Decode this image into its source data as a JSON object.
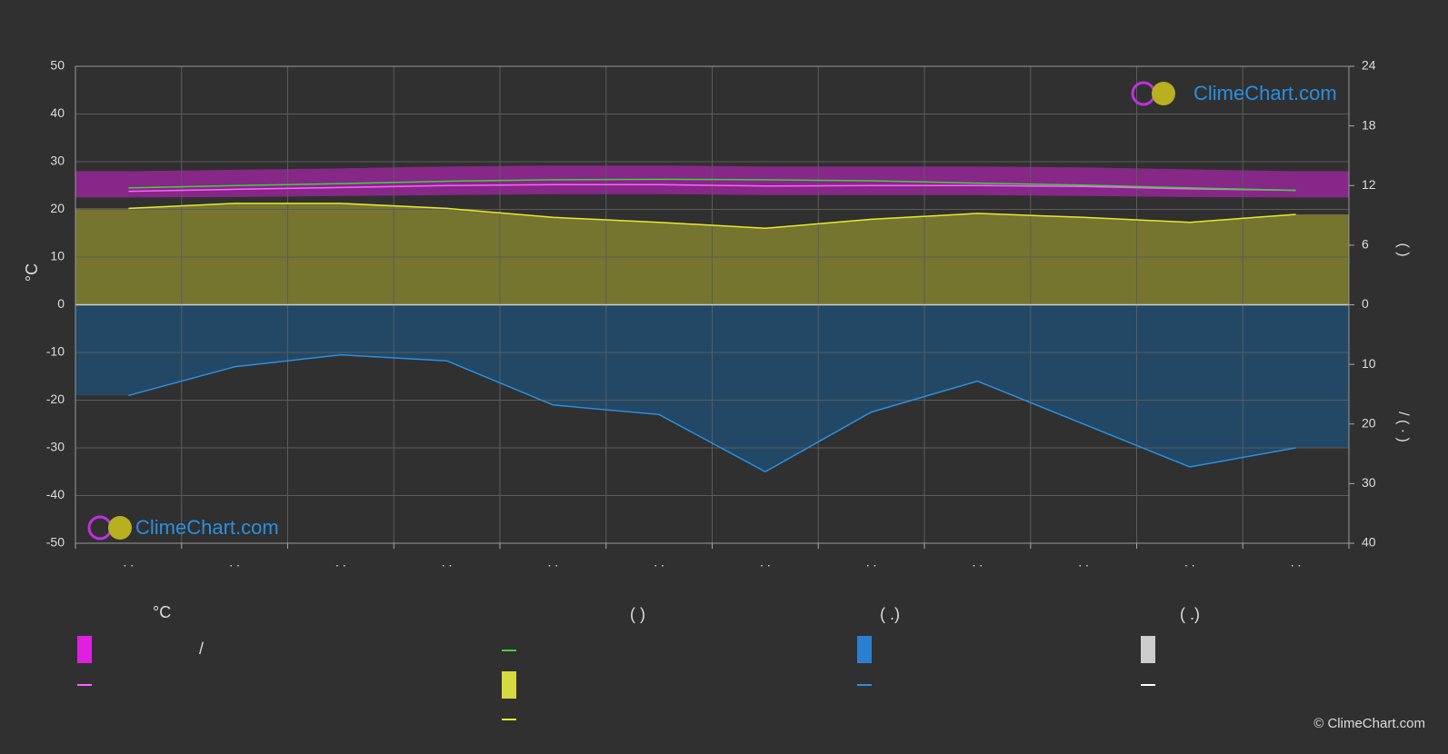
{
  "chart_data": {
    "type": "line",
    "y_label": "°C",
    "y2_label": "(   )",
    "y3_label": "/    (  ·  )",
    "categories": [
      ". .",
      ". .",
      ". .",
      ". .",
      ". .",
      ". .",
      ". .",
      ". .",
      ". .",
      ". .",
      ". .",
      ". ."
    ],
    "ylim": [
      -50,
      50
    ],
    "yticks": [
      -50,
      -40,
      -30,
      -20,
      -10,
      0,
      10,
      20,
      30,
      40,
      50
    ],
    "y2lim": [
      -24,
      24
    ],
    "y2ticks": [
      0,
      6,
      12,
      18,
      24
    ],
    "y3lim": [
      40,
      -40
    ],
    "y3ticks": [
      0,
      10,
      20,
      30,
      40
    ],
    "grid": true,
    "band": {
      "color": "#d020d0",
      "low": [
        22.5,
        22.6,
        22.8,
        23.0,
        23.2,
        23.2,
        23.0,
        23.0,
        23.0,
        22.8,
        22.6,
        22.5
      ],
      "high": [
        28.0,
        28.3,
        28.6,
        29.0,
        29.2,
        29.2,
        29.0,
        29.0,
        29.0,
        28.8,
        28.4,
        28.0
      ]
    },
    "series": [
      {
        "color": "#ff60ff",
        "values": [
          23.8,
          24.2,
          24.6,
          25.0,
          25.2,
          25.2,
          24.9,
          25.0,
          25.0,
          24.8,
          24.3,
          24.0
        ]
      },
      {
        "color": "#40d040",
        "values": [
          24.5,
          25.0,
          25.4,
          25.9,
          26.2,
          26.3,
          26.2,
          26.0,
          25.5,
          25.1,
          24.5,
          24.0
        ]
      },
      {
        "color": "#e8e830",
        "fill": "#8c8c30",
        "axis": "y2",
        "values": [
          9.7,
          10.2,
          10.2,
          9.7,
          8.8,
          8.3,
          7.7,
          8.6,
          9.2,
          8.8,
          8.3,
          9.1
        ]
      },
      {
        "color": "#2a8fe0",
        "fill": "#1e5078",
        "axis": "y3",
        "values": [
          15.2,
          10.4,
          8.4,
          9.4,
          16.8,
          18.4,
          28.0,
          18.0,
          12.8,
          20.0,
          27.2,
          24.0
        ]
      }
    ]
  },
  "legend": {
    "headers": [
      "°C",
      "(          )",
      "(   .)",
      "(   .)"
    ],
    "slash": "/"
  },
  "logo": "ClimeChart.com",
  "copyright": "© ClimeChart.com"
}
